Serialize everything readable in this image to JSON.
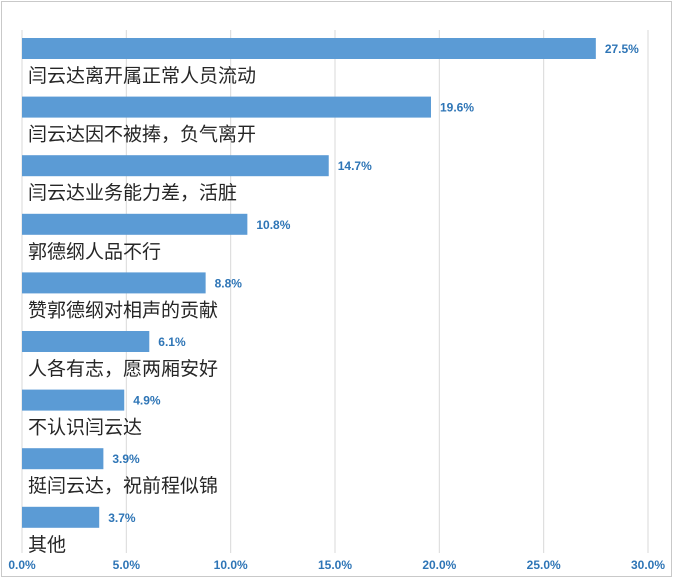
{
  "chart_data": {
    "type": "bar",
    "orientation": "horizontal",
    "categories": [
      "闫云达离开属正常人员流动",
      "闫云达因不被捧，负气离开",
      "闫云达业务能力差，活脏",
      "郭德纲人品不行",
      "赞郭德纲对相声的贡献",
      "人各有志，愿两厢安好",
      "不认识闫云达",
      "挺闫云达，祝前程似锦",
      "其他"
    ],
    "values": [
      27.5,
      19.6,
      14.7,
      10.8,
      8.8,
      6.1,
      4.9,
      3.9,
      3.7
    ],
    "value_labels": [
      "27.5%",
      "19.6%",
      "14.7%",
      "10.8%",
      "8.8%",
      "6.1%",
      "4.9%",
      "3.9%",
      "3.7%"
    ],
    "xlim": [
      0,
      30
    ],
    "x_ticks": [
      0,
      5,
      10,
      15,
      20,
      25,
      30
    ],
    "x_tick_labels": [
      "0.0%",
      "5.0%",
      "10.0%",
      "15.0%",
      "20.0%",
      "25.0%",
      "30.0%"
    ],
    "title": "",
    "xlabel": "",
    "ylabel": "",
    "grid": true,
    "legend": "none",
    "bar_color": "#5b9bd5",
    "label_color": "#2e75b6"
  }
}
